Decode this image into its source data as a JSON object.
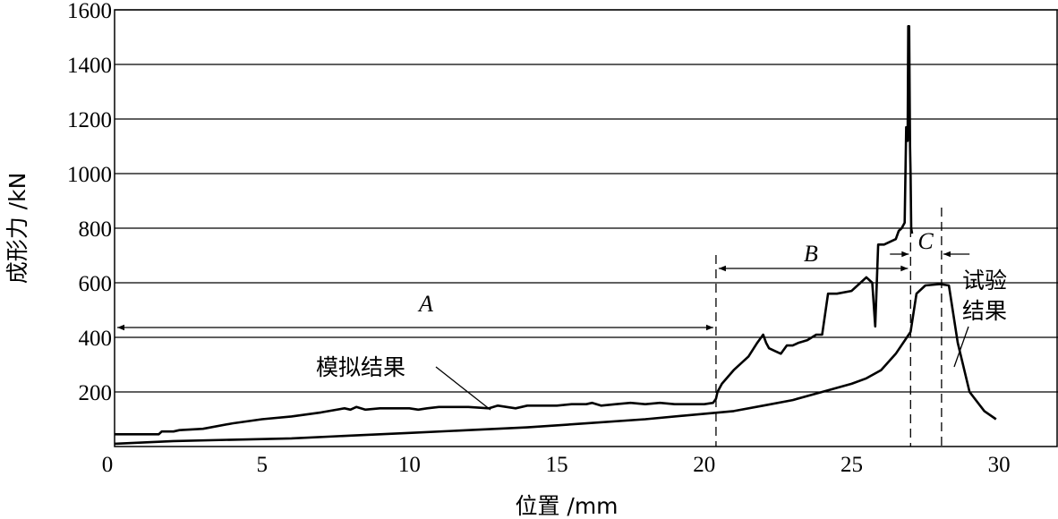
{
  "chart_data": {
    "type": "line",
    "xlabel": "位置 /mm",
    "ylabel": "成形力 /kN",
    "xlim": [
      0,
      32
    ],
    "ylim": [
      0,
      1600
    ],
    "xticks": [
      0,
      5,
      10,
      15,
      20,
      25,
      30
    ],
    "yticks": [
      200,
      400,
      600,
      800,
      1000,
      1200,
      1400,
      1600
    ],
    "grid": "horizontal",
    "series": [
      {
        "name": "模拟结果",
        "x": [
          0,
          1.5,
          1.6,
          2,
          2.2,
          3,
          4,
          5,
          6,
          7,
          7.8,
          8,
          8.2,
          8.5,
          9,
          9.5,
          10,
          10.3,
          10.6,
          11,
          12,
          12.7,
          13,
          13.6,
          14,
          15,
          15.5,
          16,
          16.2,
          16.5,
          17,
          17.5,
          18,
          18.5,
          19,
          19.5,
          20,
          20.3,
          20.4,
          20.45,
          20.6,
          21,
          21.5,
          21.8,
          22,
          22.1,
          22.2,
          22.4,
          22.6,
          22.8,
          23,
          23.2,
          23.5,
          23.8,
          24,
          24.2,
          24.3,
          24.5,
          25,
          25.3,
          25.5,
          25.7,
          25.8,
          25.9,
          26.0,
          26.02,
          26.1,
          26.5,
          26.6,
          26.7,
          26.8,
          26.85,
          26.9,
          26.92,
          26.95,
          26.98,
          27.0,
          27.02,
          27.05
        ],
        "y": [
          45,
          45,
          55,
          55,
          60,
          65,
          85,
          100,
          110,
          125,
          140,
          135,
          145,
          135,
          140,
          140,
          140,
          135,
          140,
          145,
          145,
          140,
          150,
          140,
          150,
          150,
          155,
          155,
          160,
          150,
          155,
          160,
          155,
          160,
          155,
          155,
          155,
          160,
          175,
          200,
          230,
          280,
          330,
          380,
          410,
          380,
          360,
          350,
          340,
          370,
          370,
          380,
          390,
          410,
          410,
          560,
          560,
          560,
          570,
          600,
          620,
          600,
          440,
          740,
          740,
          740,
          740,
          760,
          790,
          800,
          820,
          1170,
          1120,
          1540,
          1540,
          1100,
          1000,
          800,
          780
        ]
      },
      {
        "name": "试验结果",
        "x": [
          0,
          2,
          4,
          6,
          8,
          10,
          12,
          14,
          16,
          18,
          20,
          21,
          22,
          23,
          24,
          25,
          25.5,
          26,
          26.5,
          27,
          27.2,
          27.5,
          28,
          28.3,
          28.6,
          29,
          29.5,
          29.9
        ],
        "y": [
          10,
          20,
          25,
          30,
          40,
          50,
          60,
          70,
          85,
          100,
          120,
          130,
          150,
          170,
          200,
          230,
          250,
          280,
          340,
          420,
          560,
          590,
          595,
          590,
          380,
          200,
          130,
          100
        ]
      }
    ],
    "annotations": {
      "region_A": "A",
      "region_B": "B",
      "region_C": "C",
      "sim_label": "模拟结果",
      "exp_label_line1": "试验",
      "exp_label_line2": "结果"
    }
  }
}
